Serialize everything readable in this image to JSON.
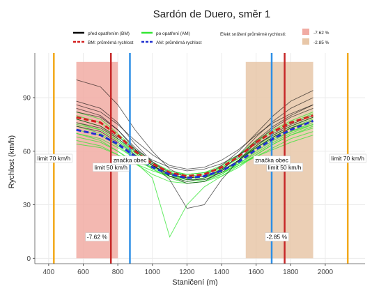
{
  "chart_data": {
    "type": "line",
    "title": "Sardón de Duero, směr 1",
    "xlabel": "Staničení (m)",
    "ylabel": "Rychlost (km/h)",
    "xlim": [
      320,
      2230
    ],
    "ylim": [
      -3,
      115
    ],
    "xticks": [
      400,
      600,
      800,
      1000,
      1200,
      1400,
      1600,
      1800,
      2000
    ],
    "yticks": [
      0,
      30,
      60,
      90
    ],
    "grid": true,
    "legend": {
      "position": "top",
      "items": [
        {
          "label": "před opatřením (BM)",
          "color": "#000000",
          "style": "solid"
        },
        {
          "label": "po opatření (AM)",
          "color": "#32e632",
          "style": "solid"
        },
        {
          "label": "BM: průměrná rychlost",
          "color": "#d42020",
          "style": "dashed"
        },
        {
          "label": "AM: průměrná rychlost",
          "color": "#1f2fd0",
          "style": "dashed"
        }
      ],
      "effect_title": "Efekt snížení průměrné rychlosti:",
      "effect_items": [
        {
          "label": "-7.62 %",
          "color": "#f1aba3"
        },
        {
          "label": "-2.85 %",
          "color": "#e8c7a8"
        }
      ]
    },
    "regions": [
      {
        "x_start": 560,
        "x_end": 800,
        "color": "#f1aba3",
        "label": "-7.62 %",
        "label_x": 680,
        "label_y": 12
      },
      {
        "x_start": 1540,
        "x_end": 1930,
        "color": "#e8c7a8",
        "label": "-2.85 %",
        "label_x": 1720,
        "label_y": 12
      }
    ],
    "vlines": [
      {
        "x": 430,
        "color": "#f2a91b",
        "label": "limit 70 km/h",
        "label_y": 56
      },
      {
        "x": 2130,
        "color": "#f2a91b",
        "label": "limit 70 km/h",
        "label_y": 56
      },
      {
        "x": 760,
        "color": "#c62828",
        "label": "limit 50 km/h",
        "label_y": 51
      },
      {
        "x": 1765,
        "color": "#c62828",
        "label": "limit 50 km/h",
        "label_y": 51
      },
      {
        "x": 870,
        "color": "#2e8fe6",
        "label": "značka obec",
        "label_y": 55
      },
      {
        "x": 1690,
        "color": "#2e8fe6",
        "label": "značka obec",
        "label_y": 55
      }
    ],
    "series": [
      {
        "name": "BM: průměrná rychlost",
        "color": "#d42020",
        "style": "dashed",
        "x": [
          560,
          700,
          800,
          900,
          1000,
          1100,
          1200,
          1300,
          1400,
          1500,
          1600,
          1700,
          1800,
          1930
        ],
        "values": [
          79,
          76,
          69,
          60,
          53,
          48,
          46,
          47,
          51,
          57,
          65,
          71,
          76,
          80
        ]
      },
      {
        "name": "AM: průměrná rychlost",
        "color": "#1f2fd0",
        "style": "dashed",
        "x": [
          560,
          700,
          800,
          900,
          1000,
          1100,
          1200,
          1300,
          1400,
          1500,
          1600,
          1700,
          1800,
          1930
        ],
        "values": [
          72,
          69,
          64,
          57,
          51,
          47,
          45,
          46,
          49,
          54,
          61,
          67,
          72,
          77
        ]
      }
    ],
    "individual_runs": {
      "bm_color": "#000000",
      "am_color": "#32e632",
      "x": [
        560,
        700,
        800,
        900,
        1000,
        1100,
        1200,
        1300,
        1400,
        1500,
        1600,
        1700,
        1800,
        1930
      ],
      "bm_runs": [
        [
          86,
          82,
          75,
          66,
          58,
          52,
          50,
          51,
          55,
          61,
          69,
          76,
          81,
          86
        ],
        [
          100,
          96,
          86,
          72,
          60,
          50,
          45,
          46,
          52,
          60,
          70,
          80,
          88,
          94
        ],
        [
          74,
          71,
          65,
          58,
          52,
          47,
          45,
          46,
          49,
          55,
          62,
          68,
          73,
          77
        ],
        [
          82,
          79,
          72,
          62,
          54,
          48,
          44,
          44,
          48,
          55,
          65,
          73,
          79,
          84
        ],
        [
          78,
          74,
          68,
          61,
          55,
          51,
          49,
          50,
          53,
          58,
          64,
          69,
          74,
          79
        ],
        [
          88,
          84,
          76,
          64,
          54,
          46,
          42,
          43,
          49,
          58,
          68,
          77,
          84,
          90
        ],
        [
          76,
          73,
          67,
          60,
          53,
          44,
          28,
          30,
          44,
          55,
          63,
          70,
          75,
          80
        ],
        [
          84,
          80,
          72,
          61,
          52,
          46,
          43,
          45,
          50,
          57,
          66,
          74,
          80,
          86
        ]
      ],
      "am_runs": [
        [
          70,
          67,
          62,
          56,
          50,
          46,
          44,
          45,
          48,
          53,
          59,
          65,
          70,
          75
        ],
        [
          76,
          72,
          66,
          58,
          52,
          47,
          45,
          46,
          50,
          56,
          63,
          69,
          74,
          79
        ],
        [
          66,
          63,
          58,
          53,
          49,
          46,
          45,
          46,
          48,
          52,
          57,
          62,
          67,
          71
        ],
        [
          80,
          76,
          69,
          60,
          53,
          48,
          46,
          47,
          51,
          58,
          66,
          72,
          77,
          82
        ],
        [
          68,
          65,
          60,
          54,
          45,
          12,
          30,
          40,
          46,
          52,
          58,
          64,
          69,
          73
        ],
        [
          74,
          70,
          64,
          57,
          51,
          46,
          43,
          44,
          47,
          53,
          60,
          66,
          71,
          76
        ],
        [
          72,
          69,
          63,
          56,
          50,
          45,
          42,
          43,
          47,
          54,
          62,
          68,
          73,
          78
        ],
        [
          78,
          74,
          67,
          59,
          52,
          47,
          44,
          45,
          49,
          55,
          62,
          68,
          73,
          77
        ],
        [
          64,
          62,
          58,
          54,
          51,
          48,
          47,
          48,
          50,
          53,
          57,
          61,
          65,
          69
        ],
        [
          82,
          78,
          70,
          61,
          54,
          49,
          47,
          48,
          52,
          58,
          65,
          71,
          76,
          81
        ],
        [
          70,
          66,
          60,
          53,
          47,
          43,
          42,
          43,
          46,
          51,
          58,
          64,
          69,
          74
        ],
        [
          75,
          72,
          66,
          59,
          53,
          49,
          47,
          48,
          51,
          56,
          62,
          67,
          71,
          75
        ]
      ]
    }
  }
}
